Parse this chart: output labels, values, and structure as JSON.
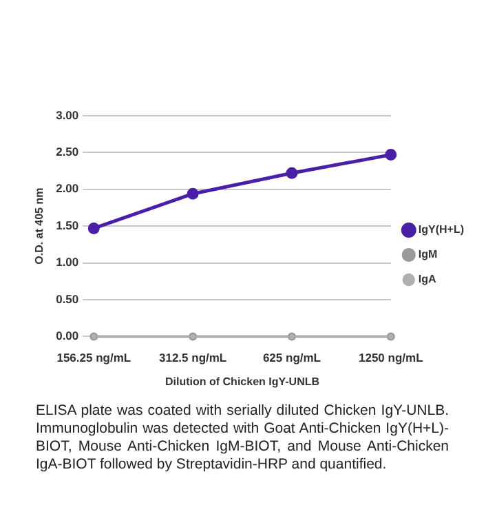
{
  "chart_data": {
    "type": "line",
    "xlabel": "Dilution of Chicken IgY-UNLB",
    "ylabel": "O.D. at 405 nm",
    "categories": [
      "156.25 ng/mL",
      "312.5 ng/mL",
      "625 ng/mL",
      "1250 ng/mL"
    ],
    "series": [
      {
        "name": "IgY(H+L)",
        "color": "#4a1fa8",
        "values": [
          1.47,
          1.94,
          2.22,
          2.47
        ]
      },
      {
        "name": "IgM",
        "color": "#9a9a9a",
        "values": [
          0,
          0,
          0,
          0
        ]
      },
      {
        "name": "IgA",
        "color": "#b0b0b0",
        "values": [
          0,
          0,
          0,
          0
        ]
      }
    ],
    "ylim": [
      0,
      3
    ],
    "yticks": [
      {
        "value": 0,
        "label": "0.00"
      },
      {
        "value": 0.5,
        "label": "0.50"
      },
      {
        "value": 1,
        "label": "1.00"
      },
      {
        "value": 1.5,
        "label": "1.50"
      },
      {
        "value": 2,
        "label": "2.00"
      },
      {
        "value": 2.5,
        "label": "2.50"
      },
      {
        "value": 3,
        "label": "3.00"
      }
    ],
    "grid": "y",
    "legend": "right",
    "marker": "circle",
    "line_style": "solid",
    "annotations": [
      "ELISA plate was coated with serially diluted Chicken IgY-UNLB. Immunoglobulin was detected with Goat Anti-Chicken IgY(H+L)-BIOT, Mouse Anti-Chicken IgM-BIOT, and Mouse Anti-Chicken IgA-BIOT followed by Streptavidin-HRP and quantified."
    ]
  }
}
